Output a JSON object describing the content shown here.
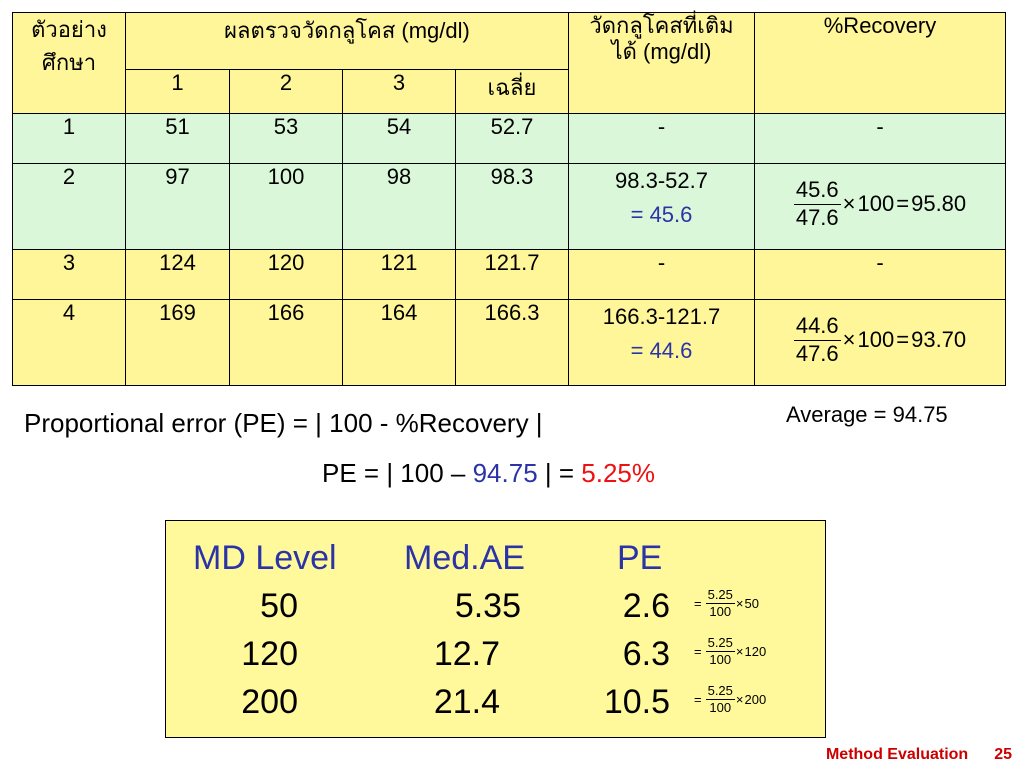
{
  "table": {
    "header": {
      "sample": "ตัวอย่าง\nศึกษา",
      "glucose": "ผลตรวจวัดกลูโคส (mg/dl)",
      "runs": [
        "1",
        "2",
        "3",
        "เฉลี่ย"
      ],
      "added": "วัดกลูโคสที่เติม\nได้ (mg/dl)",
      "recovery": "%Recovery"
    },
    "rows": [
      {
        "id": "1",
        "r1": "51",
        "r2": "53",
        "r3": "54",
        "avg": "52.7",
        "added": "-",
        "added_result": "",
        "recovery": "-",
        "frac": null
      },
      {
        "id": "2",
        "r1": "97",
        "r2": "100",
        "r3": "98",
        "avg": "98.3",
        "added": "98.3-52.7",
        "added_result": "= 45.6",
        "recovery": "",
        "frac": {
          "num": "45.6",
          "den": "47.6",
          "times": "×",
          "mult": "100",
          "eq": "=",
          "result": "95.80"
        }
      },
      {
        "id": "3",
        "r1": "124",
        "r2": "120",
        "r3": "121",
        "avg": "121.7",
        "added": "-",
        "added_result": "",
        "recovery": "-",
        "frac": null
      },
      {
        "id": "4",
        "r1": "169",
        "r2": "166",
        "r3": "164",
        "avg": "166.3",
        "added": "166.3-121.7",
        "added_result": "= 44.6",
        "recovery": "",
        "frac": {
          "num": "44.6",
          "den": "47.6",
          "times": "×",
          "mult": "100",
          "eq": "=",
          "result": "93.70"
        }
      }
    ]
  },
  "average": "Average = 94.75",
  "pe": {
    "line1": "Proportional error (PE) = | 100 - %Recovery |",
    "line2_prefix": "PE = | 100 – ",
    "line2_value": "94.75",
    "line2_mid": " | = ",
    "line2_result": "5.25%"
  },
  "md_table": {
    "headers": {
      "level": "MD Level",
      "med_ae": "Med.AE",
      "pe": "PE"
    },
    "rows": [
      {
        "level": "50",
        "med_ae": "5.35",
        "pe": "2.6",
        "frac": {
          "eq": "=",
          "num": "5.25",
          "den": "100",
          "times": "×",
          "mult": "50"
        }
      },
      {
        "level": "120",
        "med_ae": "12.7",
        "pe": "6.3",
        "frac": {
          "eq": "=",
          "num": "5.25",
          "den": "100",
          "times": "×",
          "mult": "120"
        }
      },
      {
        "level": "200",
        "med_ae": "21.4",
        "pe": "10.5",
        "frac": {
          "eq": "=",
          "num": "5.25",
          "den": "100",
          "times": "×",
          "mult": "200"
        }
      }
    ]
  },
  "footer": {
    "title": "Method Evaluation",
    "page": "25"
  },
  "colors": {
    "header_yellow": "#fff69a",
    "row_green": "#daf7da",
    "blue_text": "#2b34a6",
    "red_text": "#ee1111",
    "footer_red": "#cc0000"
  }
}
